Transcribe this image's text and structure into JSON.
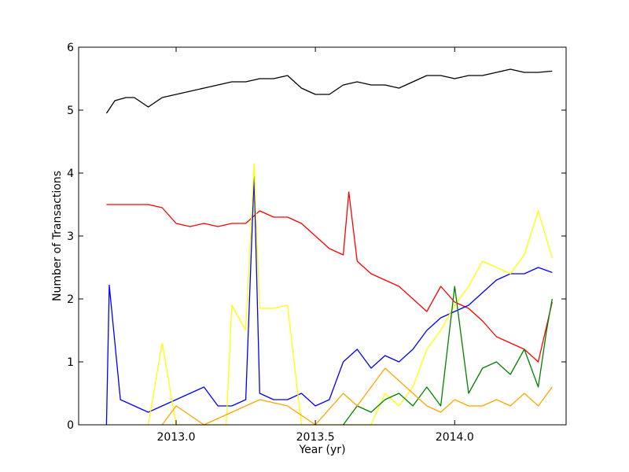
{
  "chart_data": {
    "type": "line",
    "title": "",
    "xlabel": "Year (yr)",
    "ylabel": "Number of Transactions",
    "xlim": [
      2012.65,
      2014.4
    ],
    "ylim": [
      0,
      6
    ],
    "xticks": [
      2013.0,
      2013.5,
      2014.0
    ],
    "xtick_labels": [
      "2013.0",
      "2013.5",
      "2014.0"
    ],
    "yticks": [
      0,
      1,
      2,
      3,
      4,
      5,
      6
    ],
    "ytick_labels": [
      "0",
      "1",
      "2",
      "3",
      "4",
      "5",
      "6"
    ],
    "grid": false,
    "legend": "none",
    "series": [
      {
        "color": "#000000",
        "x": [
          2012.75,
          2012.78,
          2012.82,
          2012.85,
          2012.9,
          2012.95,
          2013.0,
          2013.05,
          2013.1,
          2013.15,
          2013.2,
          2013.25,
          2013.3,
          2013.35,
          2013.4,
          2013.45,
          2013.5,
          2013.55,
          2013.6,
          2013.65,
          2013.7,
          2013.75,
          2013.8,
          2013.85,
          2013.9,
          2013.95,
          2014.0,
          2014.05,
          2014.1,
          2014.15,
          2014.2,
          2014.25,
          2014.3,
          2014.35
        ],
        "y": [
          4.95,
          5.15,
          5.2,
          5.2,
          5.05,
          5.2,
          5.25,
          5.3,
          5.35,
          5.4,
          5.45,
          5.45,
          5.5,
          5.5,
          5.55,
          5.35,
          5.25,
          5.25,
          5.4,
          5.45,
          5.4,
          5.4,
          5.35,
          5.45,
          5.55,
          5.55,
          5.5,
          5.55,
          5.55,
          5.6,
          5.65,
          5.6,
          5.6,
          5.62
        ]
      },
      {
        "color": "#ff0000",
        "x": [
          2012.75,
          2012.8,
          2012.85,
          2012.9,
          2012.95,
          2013.0,
          2013.05,
          2013.1,
          2013.15,
          2013.2,
          2013.25,
          2013.3,
          2013.35,
          2013.4,
          2013.45,
          2013.5,
          2013.55,
          2013.6,
          2013.62,
          2013.65,
          2013.7,
          2013.75,
          2013.8,
          2013.85,
          2013.9,
          2013.95,
          2014.0,
          2014.05,
          2014.1,
          2014.15,
          2014.2,
          2014.25,
          2014.3,
          2014.35
        ],
        "y": [
          3.5,
          3.5,
          3.5,
          3.5,
          3.45,
          3.2,
          3.15,
          3.2,
          3.15,
          3.2,
          3.2,
          3.4,
          3.3,
          3.3,
          3.2,
          3.0,
          2.8,
          2.7,
          3.7,
          2.6,
          2.4,
          2.3,
          2.2,
          2.0,
          1.8,
          2.2,
          1.95,
          1.85,
          1.65,
          1.4,
          1.3,
          1.2,
          1.0,
          1.95
        ]
      },
      {
        "color": "#0000ff",
        "x": [
          2012.75,
          2012.76,
          2012.8,
          2012.85,
          2012.9,
          2012.95,
          2013.0,
          2013.05,
          2013.1,
          2013.15,
          2013.2,
          2013.25,
          2013.28,
          2013.3,
          2013.35,
          2013.4,
          2013.45,
          2013.5,
          2013.55,
          2013.6,
          2013.65,
          2013.7,
          2013.75,
          2013.8,
          2013.85,
          2013.9,
          2013.95,
          2014.0,
          2014.05,
          2014.1,
          2014.15,
          2014.2,
          2014.25,
          2014.3,
          2014.35
        ],
        "y": [
          0,
          2.22,
          0.4,
          0.3,
          0.2,
          0.3,
          0.4,
          0.5,
          0.6,
          0.3,
          0.3,
          0.4,
          3.95,
          0.5,
          0.4,
          0.4,
          0.5,
          0.3,
          0.4,
          1.0,
          1.2,
          0.9,
          1.1,
          1.0,
          1.2,
          1.5,
          1.7,
          1.8,
          1.9,
          2.1,
          2.3,
          2.4,
          2.4,
          2.5,
          2.42
        ]
      },
      {
        "color": "#ffff00",
        "x": [
          2012.9,
          2012.95,
          2013.0,
          2013.05,
          2013.1,
          2013.15,
          2013.18,
          2013.2,
          2013.25,
          2013.28,
          2013.3,
          2013.35,
          2013.4,
          2013.45,
          2013.5,
          2013.55,
          2013.6,
          2013.65,
          2013.7,
          2013.75,
          2013.8,
          2013.85,
          2013.9,
          2013.95,
          2014.0,
          2014.05,
          2014.1,
          2014.15,
          2014.2,
          2014.25,
          2014.3,
          2014.35
        ],
        "y": [
          0,
          1.3,
          0,
          0,
          0,
          0,
          0,
          1.9,
          1.5,
          4.15,
          1.85,
          1.85,
          1.9,
          0,
          0,
          0,
          0,
          0,
          0,
          0.5,
          0.3,
          0.6,
          1.2,
          1.5,
          1.9,
          2.2,
          2.6,
          2.5,
          2.4,
          2.7,
          3.4,
          2.65
        ]
      },
      {
        "color": "#008000",
        "x": [
          2013.6,
          2013.65,
          2013.7,
          2013.75,
          2013.8,
          2013.85,
          2013.9,
          2013.95,
          2014.0,
          2014.05,
          2014.1,
          2014.15,
          2014.2,
          2014.25,
          2014.3,
          2014.33,
          2014.35
        ],
        "y": [
          0,
          0.3,
          0.2,
          0.4,
          0.5,
          0.3,
          0.6,
          0.3,
          2.2,
          0.5,
          0.9,
          1.0,
          0.8,
          1.2,
          0.6,
          1.5,
          2.0
        ]
      },
      {
        "color": "#ffa500",
        "x": [
          2012.95,
          2013.0,
          2013.1,
          2013.2,
          2013.3,
          2013.4,
          2013.5,
          2013.6,
          2013.65,
          2013.7,
          2013.75,
          2013.8,
          2013.85,
          2013.9,
          2013.95,
          2014.0,
          2014.05,
          2014.1,
          2014.15,
          2014.2,
          2014.25,
          2014.3,
          2014.35
        ],
        "y": [
          0,
          0.3,
          0,
          0.2,
          0.4,
          0.3,
          0,
          0.5,
          0.3,
          0.6,
          0.9,
          0.7,
          0.5,
          0.3,
          0.2,
          0.4,
          0.3,
          0.3,
          0.4,
          0.3,
          0.5,
          0.3,
          0.6
        ]
      }
    ]
  }
}
